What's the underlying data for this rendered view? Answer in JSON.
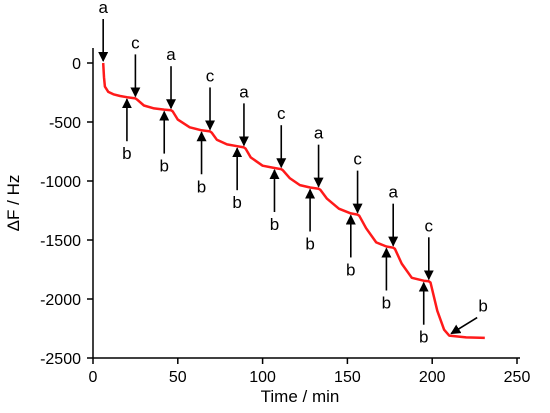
{
  "chart_data": {
    "type": "line",
    "xlabel": "Time / min",
    "ylabel": "ΔF / Hz",
    "xlim": [
      0,
      250
    ],
    "ylim": [
      -2500,
      100
    ],
    "xticks": [
      0,
      50,
      100,
      150,
      200,
      250
    ],
    "yticks": [
      0,
      -500,
      -1000,
      -1500,
      -2000,
      -2500
    ],
    "xtick_labels": [
      "0",
      "50",
      "100",
      "150",
      "200",
      "250"
    ],
    "ytick_labels": [
      "0",
      "-500",
      "-1000",
      "-1500",
      "-2000",
      "-2500"
    ],
    "grid": false,
    "series": [
      {
        "color": "#ff1a1a",
        "x": [
          6,
          6.5,
          7,
          9,
          12,
          16,
          20,
          25,
          26,
          30,
          36,
          42,
          46,
          47,
          50,
          57,
          64,
          69,
          70,
          73,
          79,
          85,
          89,
          90,
          93,
          100,
          107,
          111,
          112,
          116,
          122,
          128,
          133,
          134,
          138,
          145,
          152,
          156,
          157,
          161,
          167,
          173,
          177,
          178,
          182,
          188,
          195,
          198,
          199,
          203,
          207,
          210,
          220,
          231
        ],
        "y": [
          0,
          -120,
          -200,
          -245,
          -265,
          -280,
          -290,
          -300,
          -310,
          -360,
          -385,
          -395,
          -400,
          -410,
          -480,
          -545,
          -570,
          -580,
          -590,
          -650,
          -690,
          -705,
          -715,
          -725,
          -800,
          -870,
          -890,
          -900,
          -910,
          -975,
          -1035,
          -1055,
          -1065,
          -1075,
          -1150,
          -1235,
          -1275,
          -1285,
          -1295,
          -1400,
          -1520,
          -1555,
          -1565,
          -1575,
          -1700,
          -1820,
          -1845,
          -1850,
          -1860,
          -2100,
          -2260,
          -2310,
          -2325,
          -2330
        ]
      }
    ],
    "annotations": [
      {
        "label": "a",
        "x": 6,
        "y": 0,
        "direction": "down"
      },
      {
        "label": "b",
        "x": 20,
        "y": -290,
        "direction": "up"
      },
      {
        "label": "c",
        "x": 25,
        "y": -300,
        "direction": "down"
      },
      {
        "label": "b",
        "x": 42,
        "y": -395,
        "direction": "up"
      },
      {
        "label": "a",
        "x": 46,
        "y": -400,
        "direction": "down"
      },
      {
        "label": "b",
        "x": 64,
        "y": -570,
        "direction": "up"
      },
      {
        "label": "c",
        "x": 69,
        "y": -580,
        "direction": "down"
      },
      {
        "label": "b",
        "x": 85,
        "y": -705,
        "direction": "up"
      },
      {
        "label": "a",
        "x": 89,
        "y": -715,
        "direction": "down"
      },
      {
        "label": "b",
        "x": 107,
        "y": -890,
        "direction": "up"
      },
      {
        "label": "c",
        "x": 111,
        "y": -900,
        "direction": "down"
      },
      {
        "label": "b",
        "x": 128,
        "y": -1055,
        "direction": "up"
      },
      {
        "label": "a",
        "x": 133,
        "y": -1065,
        "direction": "down"
      },
      {
        "label": "b",
        "x": 152,
        "y": -1275,
        "direction": "up"
      },
      {
        "label": "c",
        "x": 156,
        "y": -1285,
        "direction": "down"
      },
      {
        "label": "b",
        "x": 173,
        "y": -1555,
        "direction": "up"
      },
      {
        "label": "a",
        "x": 177,
        "y": -1565,
        "direction": "down"
      },
      {
        "label": "b",
        "x": 195,
        "y": -1845,
        "direction": "up"
      },
      {
        "label": "c",
        "x": 198,
        "y": -1850,
        "direction": "down"
      },
      {
        "label": "b",
        "x": 210,
        "y": -2310,
        "direction": "diag"
      }
    ]
  }
}
